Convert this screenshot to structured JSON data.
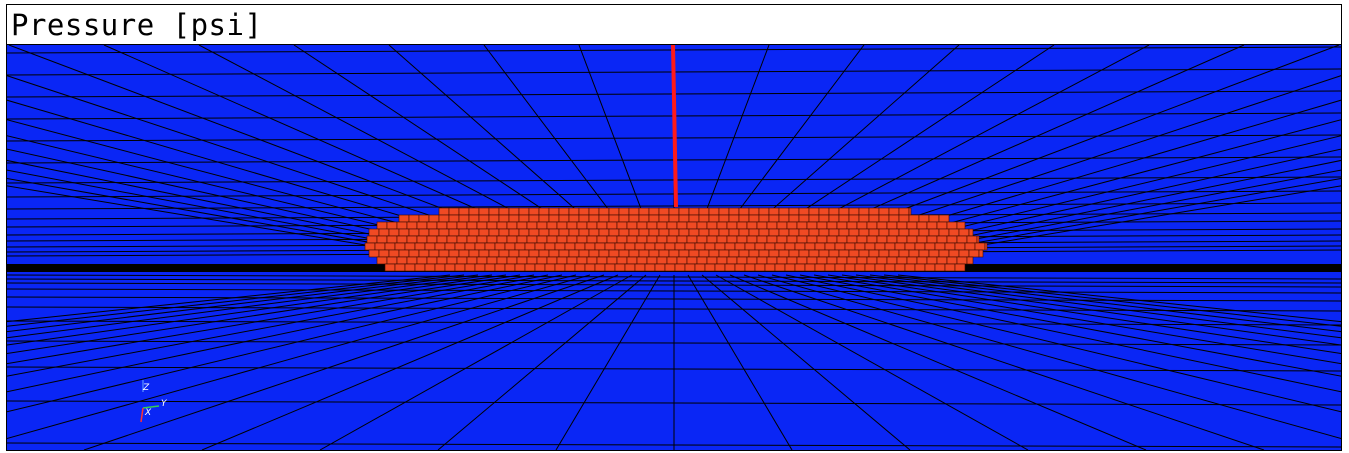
{
  "title": "Pressure [psi]",
  "colors": {
    "background_field": "#0a26f5",
    "grid_line": "#000000",
    "reservoir_cells": "#f04a23",
    "cell_edge": "#3a0a00",
    "well": "#ff1a1a"
  },
  "axis_triad": {
    "z_label": "Z",
    "y_label": "Y",
    "x_label": "X"
  }
}
